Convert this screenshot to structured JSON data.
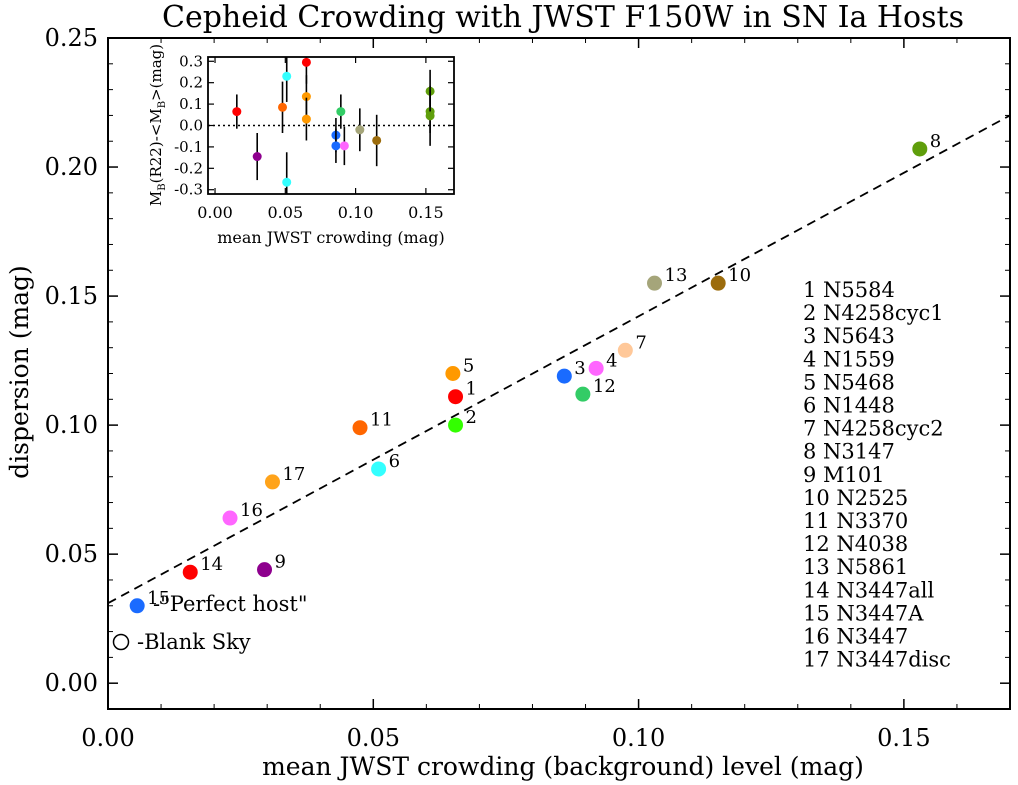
{
  "chart_data": {
    "type": "scatter",
    "title": "Cepheid Crowding with JWST F150W in SN Ia Hosts",
    "xlabel": "mean JWST crowding (background) level (mag)",
    "ylabel": "dispersion (mag)",
    "xlim": [
      0.0,
      0.17
    ],
    "ylim": [
      -0.01,
      0.25
    ],
    "xticks": [
      "0.00",
      "0.05",
      "0.10",
      "0.15"
    ],
    "xtick_values": [
      0.0,
      0.05,
      0.1,
      0.15
    ],
    "yticks": [
      "0.00",
      "0.05",
      "0.10",
      "0.15",
      "0.20",
      "0.25"
    ],
    "ytick_values": [
      0.0,
      0.05,
      0.1,
      0.15,
      0.2,
      0.25
    ],
    "fit_line": {
      "style": "dashed",
      "x": [
        0.0,
        0.17
      ],
      "y": [
        0.031,
        0.22
      ]
    },
    "points": [
      {
        "id": "1",
        "name": "N5584",
        "x": 0.0655,
        "y": 0.111,
        "color": "#ff0000"
      },
      {
        "id": "2",
        "name": "N4258cyc1",
        "x": 0.0655,
        "y": 0.1,
        "color": "#33ff00"
      },
      {
        "id": "3",
        "name": "N5643",
        "x": 0.086,
        "y": 0.119,
        "color": "#1a6bff"
      },
      {
        "id": "4",
        "name": "N1559",
        "x": 0.092,
        "y": 0.122,
        "color": "#ff66ff"
      },
      {
        "id": "5",
        "name": "N5468",
        "x": 0.065,
        "y": 0.12,
        "color": "#ff9900"
      },
      {
        "id": "6",
        "name": "N1448",
        "x": 0.051,
        "y": 0.083,
        "color": "#33ffff"
      },
      {
        "id": "7",
        "name": "N4258cyc2",
        "x": 0.0975,
        "y": 0.129,
        "color": "#ffc899"
      },
      {
        "id": "8",
        "name": "N3147",
        "x": 0.153,
        "y": 0.207,
        "color": "#5f9e0b"
      },
      {
        "id": "9",
        "name": "M101",
        "x": 0.0295,
        "y": 0.044,
        "color": "#8e008e"
      },
      {
        "id": "10",
        "name": "N2525",
        "x": 0.115,
        "y": 0.155,
        "color": "#9c6c0c"
      },
      {
        "id": "11",
        "name": "N3370",
        "x": 0.0475,
        "y": 0.099,
        "color": "#ff6600"
      },
      {
        "id": "12",
        "name": "N4038",
        "x": 0.0895,
        "y": 0.112,
        "color": "#33cc66"
      },
      {
        "id": "13",
        "name": "N5861",
        "x": 0.103,
        "y": 0.155,
        "color": "#a5a57a"
      },
      {
        "id": "14",
        "name": "N3447all",
        "x": 0.0155,
        "y": 0.043,
        "color": "#ff0000"
      },
      {
        "id": "15",
        "name": "N3447A",
        "x": 0.0055,
        "y": 0.03,
        "color": "#1a6bff"
      },
      {
        "id": "16",
        "name": "N3447",
        "x": 0.023,
        "y": 0.064,
        "color": "#ff66ff"
      },
      {
        "id": "17",
        "name": "N3447disc",
        "x": 0.031,
        "y": 0.078,
        "color": "#ffa31a"
      }
    ],
    "legend": [
      {
        "label": "1 N5584",
        "color": "#ff0000"
      },
      {
        "label": "2 N4258cyc1",
        "color": "#33ff00"
      },
      {
        "label": "3 N5643",
        "color": "#1a6bff"
      },
      {
        "label": "4 N1559",
        "color": "#ff66ff"
      },
      {
        "label": "5 N5468",
        "color": "#ff9900"
      },
      {
        "label": "6 N1448",
        "color": "#33ffff"
      },
      {
        "label": "7 N4258cyc2",
        "color": "#ffc899"
      },
      {
        "label": "8 N3147",
        "color": "#5f9e0b"
      },
      {
        "label": "9 M101",
        "color": "#8e008e"
      },
      {
        "label": "10 N2525",
        "color": "#9c6c0c"
      },
      {
        "label": "11 N3370",
        "color": "#ff6600"
      },
      {
        "label": "12 N4038",
        "color": "#33cc66"
      },
      {
        "label": "13 N5861",
        "color": "#a5a57a"
      },
      {
        "label": "14 N3447all",
        "color": "#ff0000"
      },
      {
        "label": "15 N3447A",
        "color": "#1a6bff"
      },
      {
        "label": "16 N3447",
        "color": "#ff66ff"
      },
      {
        "label": "17 N3447disc",
        "color": "#ffa31a"
      }
    ],
    "annotations": {
      "perfect_host": "-\"Perfect host\"",
      "blank_sky": "-Blank Sky",
      "perfect_host_color": "#1a6bff"
    },
    "inset": {
      "type": "scatter-errorbar",
      "xlabel": "mean JWST crowding (mag)",
      "ylabel_main": "M",
      "ylabel_sub1": "B",
      "ylabel_mid": "(R22)-<M",
      "ylabel_sub2": "B",
      "ylabel_end": ">(mag)",
      "xlim": [
        -0.005,
        0.17
      ],
      "ylim": [
        -0.32,
        0.32
      ],
      "xticks": [
        "0.00",
        "0.05",
        "0.10",
        "0.15"
      ],
      "xtick_values": [
        0.0,
        0.05,
        0.1,
        0.15
      ],
      "yticks": [
        "0.3",
        "0.2",
        "0.1",
        "0.0",
        "-0.1",
        "-0.2",
        "-0.3"
      ],
      "ytick_values": [
        0.3,
        0.2,
        0.1,
        0.0,
        -0.1,
        -0.2,
        -0.3
      ],
      "zero_line": "dotted",
      "points": [
        {
          "x": 0.0155,
          "y": 0.065,
          "err": 0.08,
          "color": "#ff0000"
        },
        {
          "x": 0.03,
          "y": -0.145,
          "err": 0.11,
          "color": "#8e008e"
        },
        {
          "x": 0.048,
          "y": 0.085,
          "err": 0.12,
          "color": "#ff6600"
        },
        {
          "x": 0.051,
          "y": 0.23,
          "err": 0.12,
          "color": "#33ffff"
        },
        {
          "x": 0.051,
          "y": -0.265,
          "err": 0.14,
          "color": "#33ffff"
        },
        {
          "x": 0.065,
          "y": 0.295,
          "err": 0.1,
          "color": "#ff0000"
        },
        {
          "x": 0.065,
          "y": 0.135,
          "err": 0.1,
          "color": "#ff9900"
        },
        {
          "x": 0.065,
          "y": 0.03,
          "err": 0.1,
          "color": "#ff9900"
        },
        {
          "x": 0.086,
          "y": -0.045,
          "err": 0.08,
          "color": "#1a6bff"
        },
        {
          "x": 0.086,
          "y": -0.095,
          "err": 0.08,
          "color": "#1a6bff"
        },
        {
          "x": 0.0895,
          "y": 0.065,
          "err": 0.08,
          "color": "#33cc66"
        },
        {
          "x": 0.092,
          "y": -0.095,
          "err": 0.09,
          "color": "#ff66ff"
        },
        {
          "x": 0.103,
          "y": -0.02,
          "err": 0.1,
          "color": "#a5a57a"
        },
        {
          "x": 0.115,
          "y": -0.07,
          "err": 0.12,
          "color": "#9c6c0c"
        },
        {
          "x": 0.153,
          "y": 0.16,
          "err": 0.1,
          "color": "#5f9e0b"
        },
        {
          "x": 0.153,
          "y": 0.065,
          "err": 0.1,
          "color": "#5f9e0b"
        },
        {
          "x": 0.153,
          "y": 0.045,
          "err": 0.14,
          "color": "#5f9e0b"
        }
      ]
    }
  }
}
